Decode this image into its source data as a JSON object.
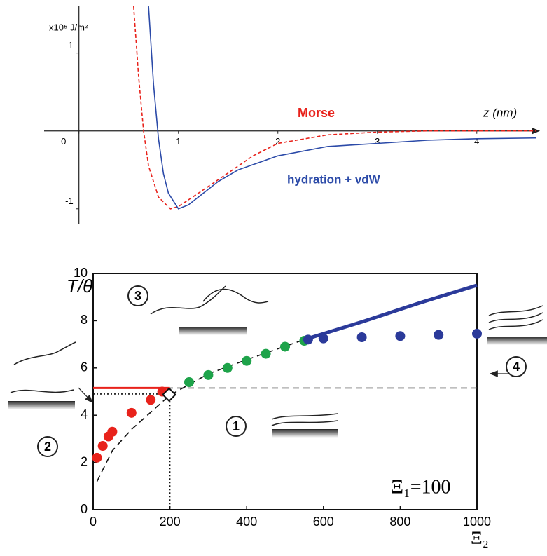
{
  "chart_data": [
    {
      "type": "line",
      "axes": "origin",
      "x_label": "z (nm)",
      "y_label": "x10⁵ J/m²",
      "xlim": [
        -0.35,
        4.6
      ],
      "ylim": [
        -1.2,
        1.6
      ],
      "xticks": [
        0,
        1,
        2,
        3,
        4
      ],
      "yticks": [
        -1,
        1
      ],
      "series": [
        {
          "name": "Morse",
          "color": "#e8221b",
          "style": "dashed",
          "x": [
            0.55,
            0.6,
            0.65,
            0.7,
            0.8,
            0.92,
            1,
            1.2,
            1.5,
            1.75,
            2,
            2.5,
            3,
            3.5,
            4.6
          ],
          "values": [
            1.6,
            0.7,
            0,
            -0.45,
            -0.85,
            -1,
            -0.97,
            -0.8,
            -0.54,
            -0.32,
            -0.16,
            -0.05,
            -0.015,
            0,
            0
          ]
        },
        {
          "name": "hydration + vdW",
          "color": "#2b4aa8",
          "style": "solid",
          "x": [
            0.7,
            0.75,
            0.8,
            0.85,
            0.9,
            1,
            1.1,
            1.2,
            1.4,
            1.6,
            2,
            2.5,
            3,
            3.5,
            4,
            4.6
          ],
          "values": [
            1.6,
            0.6,
            -0.1,
            -0.55,
            -0.8,
            -1,
            -0.95,
            -0.85,
            -0.65,
            -0.5,
            -0.32,
            -0.2,
            -0.16,
            -0.12,
            -0.1,
            -0.09
          ]
        }
      ]
    },
    {
      "type": "scatter",
      "axes": "box",
      "x_label": "Ξ₂",
      "y_label": "T/θ",
      "xlim": [
        0,
        1000
      ],
      "ylim": [
        0,
        10
      ],
      "xticks": [
        0,
        200,
        400,
        600,
        800,
        1000
      ],
      "yticks": [
        0,
        2,
        4,
        6,
        8,
        10
      ],
      "annotations": [
        "3",
        "1",
        "2",
        "4",
        "Ξ₁=100"
      ],
      "series": [
        {
          "color": "#555555",
          "style": "dashed",
          "x": [
            0,
            1000
          ],
          "values": [
            5.15,
            5.15
          ]
        },
        {
          "color": "#111111",
          "style": "dashed",
          "x": [
            10,
            50,
            100,
            200,
            300,
            400,
            550
          ],
          "values": [
            1.2,
            2.5,
            3.4,
            4.85,
            5.75,
            6.35,
            7.2
          ]
        },
        {
          "color": "#111111",
          "style": "dotted",
          "x": [
            0,
            200,
            200
          ],
          "values": [
            4.9,
            4.9,
            0
          ]
        },
        {
          "color": "#e8221b",
          "style": "solid",
          "width": 3,
          "x": [
            0,
            200
          ],
          "values": [
            5.15,
            5.15
          ]
        },
        {
          "color": "#2b3a9a",
          "style": "solid",
          "width": 5,
          "x": [
            550,
            700,
            850,
            1000
          ],
          "values": [
            7.2,
            7.95,
            8.75,
            9.5
          ]
        },
        {
          "color": "#e8221b",
          "marker": "circle",
          "x": [
            10,
            25,
            40,
            50,
            100,
            150,
            180
          ],
          "values": [
            2.2,
            2.7,
            3.1,
            3.3,
            4.1,
            4.65,
            5.0
          ]
        },
        {
          "color": "#1ea34a",
          "marker": "circle",
          "x": [
            250,
            300,
            350,
            400,
            450,
            500,
            550
          ],
          "values": [
            5.4,
            5.7,
            6.0,
            6.3,
            6.6,
            6.9,
            7.15
          ]
        },
        {
          "color": "#2b3a9a",
          "marker": "circle",
          "x": [
            560,
            600,
            700,
            800,
            900,
            1000
          ],
          "values": [
            7.2,
            7.25,
            7.3,
            7.35,
            7.4,
            7.45
          ]
        },
        {
          "color": "#ffffff",
          "marker": "diamond",
          "x": [
            198
          ],
          "values": [
            4.87
          ]
        }
      ]
    }
  ]
}
